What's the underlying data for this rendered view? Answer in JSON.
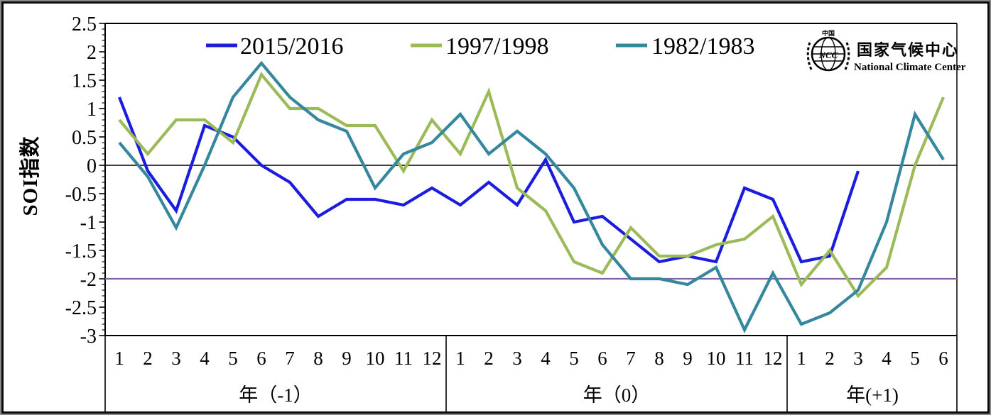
{
  "logo": {
    "title": "国家气候中心",
    "subtitle": "National Climate Center"
  },
  "chart_data": {
    "type": "line",
    "title": "",
    "ylabel": "SOI指数",
    "ylim": [
      -3,
      2.5
    ],
    "grid": false,
    "legend_position": "top",
    "y_ticks": [
      {
        "label": "2.5",
        "value": 2.5
      },
      {
        "label": "2",
        "value": 2
      },
      {
        "label": "1.5",
        "value": 1.5
      },
      {
        "label": "1",
        "value": 1
      },
      {
        "label": "0.5",
        "value": 0.5
      },
      {
        "label": "0",
        "value": 0
      },
      {
        "label": "-0.5",
        "value": -0.5
      },
      {
        "label": "-1",
        "value": -1
      },
      {
        "label": "-1.5",
        "value": -1.5
      },
      {
        "label": "-2",
        "value": -2
      },
      {
        "label": "-2.5",
        "value": -2.5
      },
      {
        "label": "-3",
        "value": -3
      }
    ],
    "y_minor_tick_step": 0.1,
    "x_months": [
      1,
      2,
      3,
      4,
      5,
      6,
      7,
      8,
      9,
      10,
      11,
      12,
      1,
      2,
      3,
      4,
      5,
      6,
      7,
      8,
      9,
      10,
      11,
      12,
      1,
      2,
      3,
      4,
      5,
      6
    ],
    "sections": [
      {
        "label": "年（-1）",
        "span": 12
      },
      {
        "label": "年（0）",
        "span": 12
      },
      {
        "label": "年(+1)",
        "span": 6
      }
    ],
    "threshold": {
      "value": -2,
      "color": "#8064A2"
    },
    "zero_line": {
      "value": 0,
      "color": "#000000"
    },
    "series": [
      {
        "name": "2015/2016",
        "color": "#1B1CDD",
        "values": [
          1.2,
          -0.1,
          -0.8,
          0.7,
          0.5,
          0,
          -0.3,
          -0.9,
          -0.6,
          -0.6,
          -0.7,
          -0.4,
          -0.7,
          -0.3,
          -0.7,
          0.1,
          -1,
          -0.9,
          -1.3,
          -1.7,
          -1.6,
          -1.7,
          -0.4,
          -0.6,
          -1.7,
          -1.6,
          -0.1,
          null,
          null,
          null
        ]
      },
      {
        "name": "1997/1998",
        "color": "#9BBB59",
        "values": [
          0.8,
          0.2,
          0.8,
          0.8,
          0.4,
          1.6,
          1,
          1,
          0.7,
          0.7,
          -0.1,
          0.8,
          0.2,
          1.3,
          -0.4,
          -0.8,
          -1.7,
          -1.9,
          -1.1,
          -1.6,
          -1.6,
          -1.4,
          -1.3,
          -0.9,
          -2.1,
          -1.5,
          -2.3,
          -1.8,
          0,
          1.2
        ]
      },
      {
        "name": "1982/1983",
        "color": "#35879E",
        "values": [
          0.4,
          -0.2,
          -1.1,
          0,
          1.2,
          1.8,
          1.2,
          0.8,
          0.6,
          -0.4,
          0.2,
          0.4,
          0.9,
          0.2,
          0.6,
          0.2,
          -0.4,
          -1.4,
          -2,
          -2,
          -2.1,
          -1.8,
          -2.9,
          -1.9,
          -2.8,
          -2.6,
          -2.2,
          -1,
          0.9,
          0.1
        ]
      }
    ]
  }
}
